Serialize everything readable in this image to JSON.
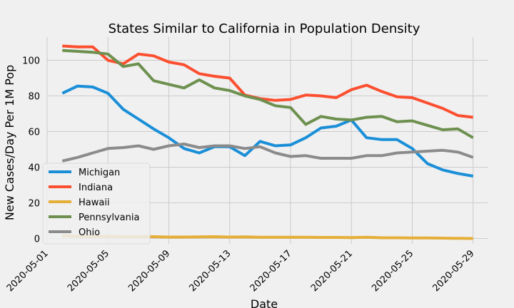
{
  "chart_data": {
    "type": "line",
    "title": "States Similar to California in Population Density",
    "xlabel": "Date",
    "ylabel": "New Cases/Day Per 1M Pop",
    "xlim": [
      "2020-05-01",
      "2020-05-30"
    ],
    "ylim": [
      -3,
      113
    ],
    "xticks": [
      "2020-05-01",
      "2020-05-05",
      "2020-05-09",
      "2020-05-13",
      "2020-05-17",
      "2020-05-21",
      "2020-05-25",
      "2020-05-29"
    ],
    "yticks": [
      0,
      20,
      40,
      60,
      80,
      100
    ],
    "grid": true,
    "legend": "center-left",
    "x": [
      "2020-05-02",
      "2020-05-03",
      "2020-05-04",
      "2020-05-05",
      "2020-05-06",
      "2020-05-07",
      "2020-05-08",
      "2020-05-09",
      "2020-05-10",
      "2020-05-11",
      "2020-05-12",
      "2020-05-13",
      "2020-05-14",
      "2020-05-15",
      "2020-05-16",
      "2020-05-17",
      "2020-05-18",
      "2020-05-19",
      "2020-05-20",
      "2020-05-21",
      "2020-05-22",
      "2020-05-23",
      "2020-05-24",
      "2020-05-25",
      "2020-05-26",
      "2020-05-27",
      "2020-05-28",
      "2020-05-29"
    ],
    "series": [
      {
        "name": "Michigan",
        "color": "#1a8fd8",
        "values": [
          81.5,
          85.5,
          85,
          81.5,
          72.5,
          67,
          61.5,
          56.5,
          50.5,
          48,
          51.5,
          51.5,
          46.5,
          54.5,
          52,
          52.5,
          56.5,
          62,
          63,
          66.5,
          56.5,
          55.5,
          55.5,
          50.5,
          42,
          38.5,
          36.5,
          35
        ]
      },
      {
        "name": "Indiana",
        "color": "#fc4f30",
        "values": [
          108,
          107.5,
          107.5,
          100,
          98,
          103.5,
          102.5,
          99,
          97.5,
          92.5,
          91,
          90,
          80.5,
          78.5,
          77.5,
          78,
          80.5,
          80,
          79,
          83.5,
          86,
          82.5,
          79.5,
          79,
          76,
          73,
          69,
          68
        ]
      },
      {
        "name": "Hawaii",
        "color": "#e5ae38",
        "values": [
          1.5,
          1.2,
          1.0,
          1.2,
          1.0,
          1.0,
          1.0,
          0.8,
          0.8,
          0.9,
          1.0,
          0.8,
          0.9,
          0.7,
          0.7,
          0.7,
          0.7,
          0.6,
          0.6,
          0.5,
          0.7,
          0.4,
          0.4,
          0.3,
          0.3,
          0.2,
          0.1,
          0.0
        ]
      },
      {
        "name": "Pennsylvania",
        "color": "#6d904f",
        "values": [
          105.5,
          105,
          104.5,
          103.5,
          96.5,
          98,
          88.5,
          86.5,
          84.5,
          89,
          84.5,
          83,
          80,
          78,
          74.5,
          73.5,
          64,
          68.5,
          67,
          66.5,
          68,
          68.5,
          65.5,
          66,
          63.5,
          61,
          61.5,
          56.5
        ]
      },
      {
        "name": "Ohio",
        "color": "#8b8b8b",
        "values": [
          43.5,
          45.5,
          48,
          50.5,
          51,
          52,
          50,
          52,
          53,
          51,
          52,
          52,
          50.5,
          51.5,
          48,
          46,
          46.5,
          45,
          45,
          45,
          46.5,
          46.5,
          48,
          48.5,
          49,
          49.5,
          48.5,
          45.5
        ]
      }
    ]
  }
}
